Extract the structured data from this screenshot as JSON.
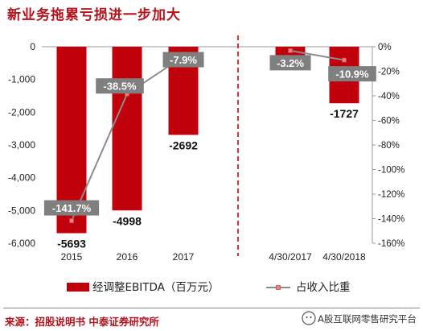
{
  "title": "新业务拖累亏损进一步加大",
  "source": "来源：招股说明书  中泰证券研究所",
  "watermark": "A股互联网零售研究平台",
  "colors": {
    "bar": "#c0000b",
    "line": "#8c8c8c",
    "marker": "#f08080",
    "divider": "#d00000",
    "label_bg": "#7f7f7f"
  },
  "chart_data": {
    "type": "bar",
    "categories": [
      "2015",
      "2016",
      "2017",
      "4/30/2017",
      "4/30/2018"
    ],
    "series": [
      {
        "name": "经调整EBITDA（百万元）",
        "type": "bar",
        "axis": "left",
        "values": [
          -5693,
          -4998,
          -2692,
          -300,
          -1727
        ],
        "labels": [
          "-5693",
          "-4998",
          "-2692",
          "",
          "-1727"
        ]
      },
      {
        "name": "占收入比重",
        "type": "line",
        "axis": "right",
        "values": [
          -141.7,
          -38.5,
          -7.9,
          -3.2,
          -10.9
        ],
        "labels": [
          "-141.7%",
          "-38.5%",
          "-7.9%",
          "-3.2%",
          "-10.9%"
        ]
      }
    ],
    "y_left": {
      "ylim": [
        -6000,
        0
      ],
      "ticks": [
        "0",
        "-1,000",
        "-2,000",
        "-3,000",
        "-4,000",
        "-5,000",
        "-6,000"
      ]
    },
    "y_right": {
      "ylim": [
        -160,
        0
      ],
      "ticks": [
        "0%",
        "-20%",
        "-40%",
        "-60%",
        "-80%",
        "-100%",
        "-120%",
        "-140%",
        "-160%"
      ]
    },
    "divider": "dashed line between 2017 and 4/30/2017",
    "legend_position": "bottom"
  }
}
